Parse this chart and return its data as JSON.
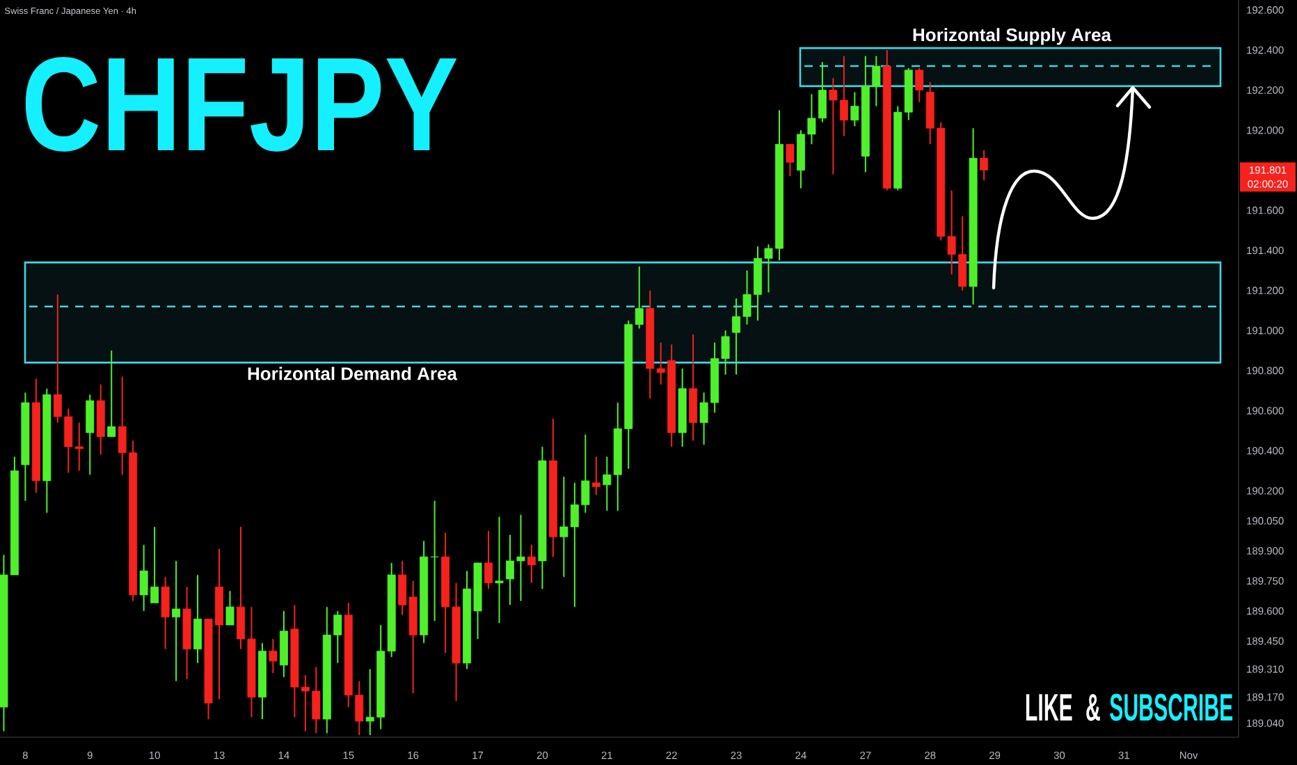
{
  "chart_data": {
    "type": "candlestick",
    "title": "CHFJPY",
    "subtitle": "Swiss Franc / Japanese Yen · 4h",
    "categories": [
      null,
      null,
      "8",
      null,
      null,
      null,
      null,
      null,
      "9",
      null,
      null,
      null,
      null,
      null,
      "10",
      null,
      null,
      null,
      null,
      null,
      "13",
      null,
      null,
      null,
      null,
      null,
      "14",
      null,
      null,
      null,
      null,
      null,
      "15",
      null,
      null,
      null,
      null,
      null,
      "16",
      null,
      null,
      null,
      null,
      null,
      "17",
      null,
      null,
      null,
      null,
      null,
      "20",
      null,
      null,
      null,
      null,
      null,
      "21",
      null,
      null,
      null,
      null,
      null,
      "22",
      null,
      null,
      null,
      null,
      null,
      "23",
      null,
      null,
      null,
      null,
      null,
      "24",
      null,
      null,
      null,
      null,
      null,
      "27",
      null,
      null,
      null,
      null,
      null,
      "28",
      null,
      null,
      null,
      null,
      null,
      "29",
      null,
      null,
      null,
      null,
      null,
      "30",
      null,
      null,
      null,
      null,
      null,
      "31",
      null,
      null,
      null,
      null,
      null,
      "Nov"
    ],
    "ohlc": [
      [
        189.12,
        189.88,
        189.0,
        189.78
      ],
      [
        189.78,
        190.37,
        189.78,
        190.3
      ],
      [
        190.33,
        190.69,
        190.15,
        190.64
      ],
      [
        190.64,
        190.76,
        190.19,
        190.25
      ],
      [
        190.25,
        190.71,
        190.09,
        190.68
      ],
      [
        190.68,
        191.18,
        190.54,
        190.57
      ],
      [
        190.57,
        190.61,
        190.29,
        190.42
      ],
      [
        190.42,
        190.54,
        190.3,
        190.41
      ],
      [
        190.49,
        190.68,
        190.28,
        190.65
      ],
      [
        190.65,
        190.73,
        190.38,
        190.47
      ],
      [
        190.47,
        190.9,
        190.47,
        190.52
      ],
      [
        190.52,
        190.77,
        190.28,
        190.39
      ],
      [
        190.39,
        190.45,
        189.65,
        189.68
      ],
      [
        189.68,
        189.93,
        189.6,
        189.8
      ],
      [
        189.64,
        190.02,
        189.64,
        189.72
      ],
      [
        189.72,
        189.77,
        189.41,
        189.57
      ],
      [
        189.57,
        189.85,
        189.25,
        189.61
      ],
      [
        189.61,
        189.72,
        189.26,
        189.41
      ],
      [
        189.41,
        189.78,
        189.34,
        189.56
      ],
      [
        189.56,
        189.56,
        189.06,
        189.14
      ],
      [
        189.72,
        189.91,
        189.16,
        189.53
      ],
      [
        189.53,
        189.7,
        189.53,
        189.62
      ],
      [
        189.62,
        190.02,
        189.41,
        189.46
      ],
      [
        189.46,
        189.62,
        189.07,
        189.17
      ],
      [
        189.17,
        189.44,
        189.06,
        189.4
      ],
      [
        189.4,
        189.46,
        189.29,
        189.35
      ],
      [
        189.33,
        189.6,
        189.27,
        189.5
      ],
      [
        189.51,
        189.63,
        189.07,
        189.22
      ],
      [
        189.22,
        189.28,
        189.0,
        189.2
      ],
      [
        189.2,
        189.32,
        188.99,
        189.06
      ],
      [
        189.06,
        189.62,
        188.99,
        189.48
      ],
      [
        189.48,
        189.6,
        189.34,
        189.58
      ],
      [
        189.58,
        189.64,
        189.12,
        189.18
      ],
      [
        189.18,
        189.25,
        188.98,
        189.05
      ],
      [
        189.05,
        189.31,
        188.98,
        189.07
      ],
      [
        189.07,
        189.53,
        189.01,
        189.4
      ],
      [
        189.4,
        189.84,
        189.37,
        189.78
      ],
      [
        189.78,
        189.85,
        189.58,
        189.63
      ],
      [
        189.67,
        189.75,
        189.19,
        189.48
      ],
      [
        189.48,
        189.95,
        189.44,
        189.87
      ],
      [
        189.87,
        190.15,
        189.55,
        189.87
      ],
      [
        189.87,
        189.99,
        189.39,
        189.62
      ],
      [
        189.62,
        189.74,
        189.15,
        189.34
      ],
      [
        189.34,
        189.8,
        189.31,
        189.71
      ],
      [
        189.6,
        189.84,
        189.46,
        189.84
      ],
      [
        189.84,
        190.0,
        189.71,
        189.74
      ],
      [
        189.74,
        190.07,
        189.54,
        189.75
      ],
      [
        189.76,
        189.98,
        189.63,
        189.85
      ],
      [
        189.85,
        190.08,
        189.65,
        189.87
      ],
      [
        189.87,
        189.93,
        189.74,
        189.83
      ],
      [
        189.85,
        190.42,
        189.71,
        190.35
      ],
      [
        190.35,
        190.56,
        189.87,
        189.97
      ],
      [
        189.97,
        190.27,
        189.77,
        190.02
      ],
      [
        190.02,
        190.24,
        189.62,
        190.13
      ],
      [
        190.13,
        190.48,
        190.09,
        190.25
      ],
      [
        190.24,
        190.37,
        190.18,
        190.22
      ],
      [
        190.23,
        190.37,
        190.1,
        190.28
      ],
      [
        190.28,
        190.64,
        190.1,
        190.51
      ],
      [
        190.51,
        191.05,
        190.31,
        191.03
      ],
      [
        191.03,
        191.32,
        191.01,
        191.11
      ],
      [
        191.11,
        191.2,
        190.66,
        190.81
      ],
      [
        190.81,
        190.94,
        190.73,
        190.79
      ],
      [
        190.85,
        190.93,
        190.42,
        190.49
      ],
      [
        190.49,
        190.81,
        190.42,
        190.71
      ],
      [
        190.71,
        190.98,
        190.45,
        190.54
      ],
      [
        190.54,
        190.69,
        190.43,
        190.64
      ],
      [
        190.64,
        190.94,
        190.59,
        190.86
      ],
      [
        190.86,
        191.0,
        190.78,
        190.97
      ],
      [
        190.99,
        191.16,
        190.78,
        191.07
      ],
      [
        191.07,
        191.3,
        191.03,
        191.18
      ],
      [
        191.18,
        191.42,
        191.05,
        191.36
      ],
      [
        191.36,
        191.43,
        191.19,
        191.41
      ],
      [
        191.41,
        192.1,
        191.35,
        191.93
      ],
      [
        191.93,
        191.93,
        191.77,
        191.84
      ],
      [
        191.8,
        192.0,
        191.71,
        191.98
      ],
      [
        191.98,
        192.18,
        191.93,
        192.06
      ],
      [
        192.06,
        192.34,
        192.04,
        192.2
      ],
      [
        192.2,
        192.26,
        191.78,
        192.15
      ],
      [
        192.15,
        192.37,
        191.97,
        192.05
      ],
      [
        192.05,
        192.19,
        192.02,
        192.12
      ],
      [
        191.87,
        192.37,
        191.79,
        192.22
      ],
      [
        192.22,
        192.37,
        192.12,
        192.32
      ],
      [
        192.32,
        192.4,
        191.7,
        191.71
      ],
      [
        191.71,
        192.12,
        191.7,
        192.09
      ],
      [
        192.09,
        192.31,
        192.05,
        192.3
      ],
      [
        192.3,
        192.31,
        192.14,
        192.2
      ],
      [
        192.19,
        192.24,
        191.93,
        192.01
      ],
      [
        192.01,
        192.04,
        191.45,
        191.47
      ],
      [
        191.47,
        191.7,
        191.28,
        191.38
      ],
      [
        191.38,
        191.57,
        191.2,
        191.22
      ],
      [
        191.22,
        192.01,
        191.13,
        191.86
      ],
      [
        191.86,
        191.9,
        191.75,
        191.801
      ],
      null,
      null,
      null,
      null,
      null,
      null,
      null,
      null,
      null,
      null,
      null,
      null,
      null,
      null,
      null,
      null,
      null,
      null,
      null
    ],
    "colors": [
      "#4ff02b",
      "#4ff02b",
      "#4ff02b",
      "#f5221d",
      "#4ff02b",
      "#f5221d",
      "#f5221d",
      "#f5221d",
      "#4ff02b",
      "#f5221d",
      "#4ff02b",
      "#f5221d",
      "#f5221d",
      "#4ff02b",
      "#4ff02b",
      "#f5221d",
      "#4ff02b",
      "#f5221d",
      "#4ff02b",
      "#f5221d",
      "#f5221d",
      "#4ff02b",
      "#f5221d",
      "#f5221d",
      "#4ff02b",
      "#f5221d",
      "#4ff02b",
      "#f5221d",
      "#f5221d",
      "#f5221d",
      "#4ff02b",
      "#4ff02b",
      "#f5221d",
      "#f5221d",
      "#4ff02b",
      "#4ff02b",
      "#4ff02b",
      "#f5221d",
      "#f5221d",
      "#4ff02b",
      "#4ff02b",
      "#f5221d",
      "#f5221d",
      "#4ff02b",
      "#4ff02b",
      "#f5221d",
      "#4ff02b",
      "#4ff02b",
      "#4ff02b",
      "#f5221d",
      "#4ff02b",
      "#f5221d",
      "#4ff02b",
      "#4ff02b",
      "#4ff02b",
      "#f5221d",
      "#4ff02b",
      "#4ff02b",
      "#4ff02b",
      "#4ff02b",
      "#f5221d",
      "#f5221d",
      "#f5221d",
      "#4ff02b",
      "#f5221d",
      "#4ff02b",
      "#4ff02b",
      "#4ff02b",
      "#4ff02b",
      "#4ff02b",
      "#4ff02b",
      "#4ff02b",
      "#4ff02b",
      "#f5221d",
      "#4ff02b",
      "#4ff02b",
      "#4ff02b",
      "#f5221d",
      "#f5221d",
      "#4ff02b",
      "#4ff02b",
      "#4ff02b",
      "#f5221d",
      "#4ff02b",
      "#4ff02b",
      "#f5221d",
      "#f5221d",
      "#f5221d",
      "#f5221d",
      "#f5221d",
      "#4ff02b",
      "#f5221d",
      null,
      null,
      null,
      null,
      null,
      null,
      null,
      null,
      null,
      null,
      null,
      null,
      null,
      null,
      null,
      null,
      null,
      null,
      null
    ],
    "ylim": [
      188.97,
      192.65
    ],
    "yticks": [
      {
        "value": 192.6,
        "label": "192.600"
      },
      {
        "value": 192.4,
        "label": "192.400"
      },
      {
        "value": 192.2,
        "label": "192.200"
      },
      {
        "value": 192.0,
        "label": "192.000"
      },
      {
        "value": 191.6,
        "label": "191.600"
      },
      {
        "value": 191.4,
        "label": "191.400"
      },
      {
        "value": 191.2,
        "label": "191.200"
      },
      {
        "value": 191.0,
        "label": "191.000"
      },
      {
        "value": 190.8,
        "label": "190.800"
      },
      {
        "value": 190.6,
        "label": "190.600"
      },
      {
        "value": 190.4,
        "label": "190.400"
      },
      {
        "value": 190.2,
        "label": "190.200"
      },
      {
        "value": 190.05,
        "label": "190.050"
      },
      {
        "value": 189.9,
        "label": "189.900"
      },
      {
        "value": 189.75,
        "label": "189.750"
      },
      {
        "value": 189.6,
        "label": "189.600"
      },
      {
        "value": 189.45,
        "label": "189.450"
      },
      {
        "value": 189.31,
        "label": "189.310"
      },
      {
        "value": 189.17,
        "label": "189.170"
      },
      {
        "value": 189.04,
        "label": "189.040"
      }
    ],
    "bands": [
      {
        "axis": "y",
        "from": 190.84,
        "to": 191.34,
        "label": "Horizontal Demand Area",
        "color": "#40d6e2"
      },
      {
        "axis": "y",
        "from": 192.22,
        "to": 192.41,
        "label": "Horizontal Supply Area",
        "color": "#40d6e2"
      }
    ],
    "ref_lines": [
      {
        "axis": "y",
        "value": 191.12,
        "color": "#40d6e2",
        "line_style": "dashed"
      },
      {
        "axis": "y",
        "value": 192.32,
        "color": "#40d6e2",
        "line_style": "dashed"
      }
    ],
    "annotations": [
      "191.801",
      "02:00:20",
      "LIKE &",
      "SUBSCRIBE"
    ]
  }
}
